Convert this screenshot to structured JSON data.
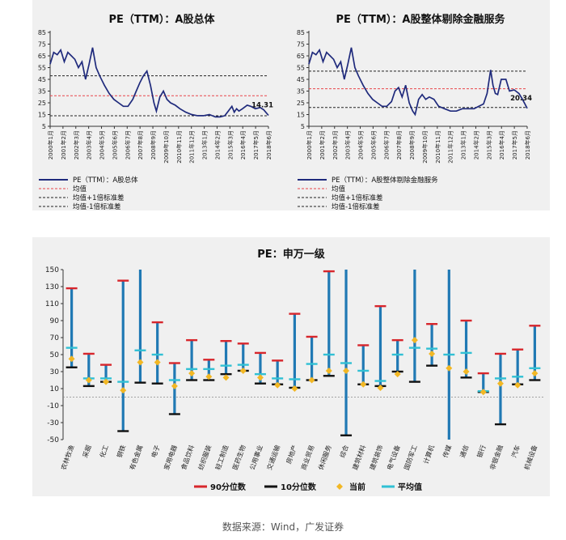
{
  "source_caption": "数据来源：Wind，广发证券",
  "chart_data": [
    {
      "type": "line",
      "title": "PE（TTM）：A股总体",
      "ylim": [
        5,
        85
      ],
      "yticks": [
        5,
        15,
        25,
        35,
        45,
        55,
        65,
        75,
        85
      ],
      "xticks": [
        "2000年1月",
        "2001年2月",
        "2002年3月",
        "2003年4月",
        "2004年5月",
        "2005年6月",
        "2006年7月",
        "2007年8月",
        "2008年9月",
        "2009年10月",
        "2010年11月",
        "2011年12月",
        "2013年1月",
        "2014年2月",
        "2015年3月",
        "2016年4月",
        "2017年5月",
        "2018年6月"
      ],
      "x_range": [
        2000.0,
        2018.5
      ],
      "series": [
        {
          "name": "PE（TTM）：A股总体",
          "x": [
            2000.0,
            2000.3,
            2000.6,
            2000.9,
            2001.2,
            2001.5,
            2001.8,
            2002.1,
            2002.4,
            2002.7,
            2003.0,
            2003.3,
            2003.6,
            2003.9,
            2004.2,
            2004.6,
            2005.0,
            2005.4,
            2005.8,
            2006.2,
            2006.6,
            2007.0,
            2007.3,
            2007.6,
            2007.9,
            2008.2,
            2008.5,
            2008.8,
            2009.0,
            2009.3,
            2009.6,
            2009.9,
            2010.2,
            2010.6,
            2011.0,
            2011.5,
            2012.0,
            2012.5,
            2013.0,
            2013.5,
            2014.0,
            2014.4,
            2014.8,
            2015.1,
            2015.4,
            2015.6,
            2015.8,
            2016.0,
            2016.3,
            2016.7,
            2017.0,
            2017.4,
            2017.8,
            2018.1,
            2018.5
          ],
          "y": [
            58,
            68,
            66,
            70,
            60,
            68,
            65,
            62,
            55,
            60,
            45,
            58,
            72,
            55,
            48,
            40,
            33,
            28,
            25,
            22,
            22,
            28,
            35,
            42,
            48,
            52,
            40,
            25,
            18,
            30,
            35,
            28,
            25,
            23,
            20,
            17,
            15,
            14,
            14,
            15,
            13,
            13,
            14,
            18,
            22,
            17,
            20,
            18,
            20,
            23,
            22,
            20,
            21,
            19,
            14.31
          ]
        }
      ],
      "hlines": [
        {
          "name": "均值",
          "value": 31
        },
        {
          "name": "均值+1倍标准差",
          "value": 48
        },
        {
          "name": "均值-1倍标准差",
          "value": 14
        }
      ],
      "end_label": "14.31",
      "legend": [
        {
          "label": "PE（TTM）：A股总体",
          "style": "solid"
        },
        {
          "label": "均值",
          "style": "red-dash"
        },
        {
          "label": "均值+1倍标准差",
          "style": "black-dash"
        },
        {
          "label": "均值-1倍标准差",
          "style": "black-dash"
        }
      ]
    },
    {
      "type": "line",
      "title": "PE（TTM）：A股整体剔除金融服务",
      "ylim": [
        5,
        85
      ],
      "yticks": [
        5,
        15,
        25,
        35,
        45,
        55,
        65,
        75,
        85
      ],
      "xticks": [
        "2000年1月",
        "2001年2月",
        "2002年3月",
        "2003年4月",
        "2004年5月",
        "2005年6月",
        "2006年7月",
        "2007年8月",
        "2008年9月",
        "2009年10月",
        "2010年11月",
        "2011年12月",
        "2013年1月",
        "2014年2月",
        "2015年3月",
        "2016年4月",
        "2017年5月",
        "2018年6月"
      ],
      "x_range": [
        2000.0,
        2018.5
      ],
      "series": [
        {
          "name": "PE（TTM）：A股整体剔除金融服务",
          "x": [
            2000.0,
            2000.3,
            2000.6,
            2000.9,
            2001.2,
            2001.5,
            2001.8,
            2002.1,
            2002.4,
            2002.7,
            2003.0,
            2003.3,
            2003.6,
            2003.9,
            2004.2,
            2004.6,
            2005.0,
            2005.4,
            2005.8,
            2006.2,
            2006.6,
            2007.0,
            2007.3,
            2007.6,
            2007.9,
            2008.2,
            2008.5,
            2008.8,
            2009.0,
            2009.3,
            2009.6,
            2009.9,
            2010.2,
            2010.6,
            2011.0,
            2011.5,
            2012.0,
            2012.5,
            2013.0,
            2013.5,
            2014.0,
            2014.4,
            2014.8,
            2015.1,
            2015.4,
            2015.6,
            2015.8,
            2016.0,
            2016.3,
            2016.7,
            2017.0,
            2017.4,
            2017.8,
            2018.1,
            2018.5
          ],
          "y": [
            58,
            68,
            66,
            70,
            60,
            68,
            65,
            62,
            55,
            60,
            45,
            58,
            72,
            55,
            48,
            40,
            33,
            28,
            25,
            22,
            22,
            26,
            35,
            38,
            30,
            40,
            25,
            18,
            15,
            28,
            32,
            28,
            30,
            28,
            22,
            20,
            18,
            18,
            20,
            20,
            20,
            22,
            24,
            33,
            53,
            40,
            33,
            32,
            45,
            45,
            35,
            36,
            33,
            28,
            20.34
          ]
        }
      ],
      "hlines": [
        {
          "name": "均值",
          "value": 37
        },
        {
          "name": "均值+1倍标准差",
          "value": 52
        },
        {
          "name": "均值-1倍标准差",
          "value": 21
        }
      ],
      "end_label": "20.34",
      "legend": [
        {
          "label": "PE（TTM）：A股整体剔除金融服务",
          "style": "solid"
        },
        {
          "label": "均值",
          "style": "red-dash"
        },
        {
          "label": "均值+1倍标准差",
          "style": "black-dash"
        },
        {
          "label": "均值-1倍标准差",
          "style": "black-dash"
        }
      ]
    },
    {
      "type": "bar",
      "title": "PE：申万一级",
      "ylim": [
        -50,
        150
      ],
      "yticks": [
        -50,
        -30,
        -10,
        10,
        30,
        50,
        70,
        90,
        110,
        130,
        150
      ],
      "categories": [
        "农林牧渔",
        "采掘",
        "化工",
        "钢铁",
        "有色金属",
        "电子",
        "家用电器",
        "食品饮料",
        "纺织服装",
        "轻工制造",
        "医药生物",
        "公用事业",
        "交通运输",
        "房地产",
        "商业贸易",
        "休闲服务",
        "综合",
        "建筑材料",
        "建筑装饰",
        "电气设备",
        "国防军工",
        "计算机",
        "传媒",
        "通信",
        "银行",
        "非银金融",
        "汽车",
        "机械设备"
      ],
      "p90": [
        128,
        51,
        38,
        137,
        150,
        88,
        40,
        67,
        44,
        66,
        63,
        52,
        43,
        98,
        71,
        148,
        150,
        61,
        107,
        67,
        150,
        86,
        150,
        90,
        28,
        51,
        56,
        84
      ],
      "p10": [
        35,
        13,
        18,
        -40,
        17,
        16,
        -20,
        20,
        20,
        27,
        31,
        16,
        15,
        11,
        20,
        25,
        -45,
        15,
        13,
        30,
        18,
        37,
        -50,
        23,
        6,
        -32,
        15,
        20
      ],
      "current": [
        45,
        20,
        18,
        8,
        41,
        41,
        13,
        28,
        24,
        23,
        31,
        23,
        14,
        10,
        20,
        31,
        31,
        15,
        11,
        27,
        67,
        51,
        34,
        30,
        6,
        16,
        14,
        28
      ],
      "mean": [
        58,
        22,
        22,
        18,
        55,
        50,
        20,
        33,
        33,
        37,
        38,
        27,
        22,
        21,
        39,
        50,
        40,
        31,
        19,
        50,
        58,
        57,
        50,
        52,
        7,
        22,
        24,
        34
      ],
      "legend": [
        "90分位数",
        "10分位数",
        "当前",
        "平均值"
      ]
    }
  ]
}
